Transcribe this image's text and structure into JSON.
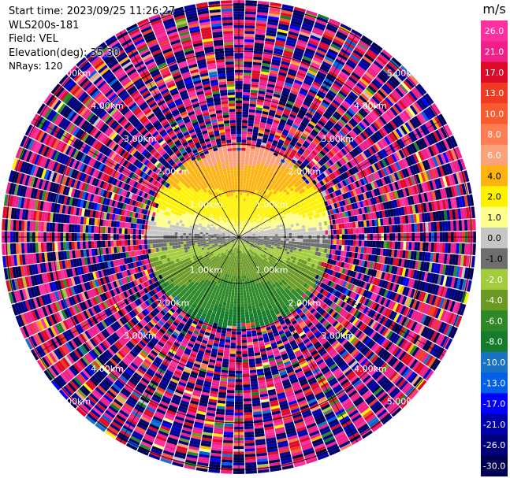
{
  "header": {
    "start_time": "Start time: 2023/09/25 11:26:27",
    "instrument": "WLS200s-181",
    "field": "Field: VEL",
    "elevation": "Elevation(deg): 35.30",
    "nrays": "NRays: 120"
  },
  "colorbar": {
    "unit": "m/s",
    "ticks": [
      "26.0",
      "21.0",
      "17.0",
      "13.0",
      "10.0",
      "8.0",
      "6.0",
      "4.0",
      "2.0",
      "1.0",
      "0.0",
      "-1.0",
      "-2.0",
      "-4.0",
      "-6.0",
      "-8.0",
      "-10.0",
      "-13.0",
      "-17.0",
      "-21.0",
      "-26.0",
      "-30.0"
    ],
    "colors": [
      "#ff2fa0",
      "#f0208a",
      "#dd0a28",
      "#f03a22",
      "#fa5a30",
      "#fc7e52",
      "#fca27a",
      "#fdb410",
      "#fef200",
      "#fefe8c",
      "#c6c6c6",
      "#6e6e6e",
      "#a2cc3c",
      "#6a9a24",
      "#2e8828",
      "#147c2a",
      "#1a72c4",
      "#0060e8",
      "#0000ff",
      "#0000aa",
      "#00007a",
      "#000050"
    ]
  },
  "chart_data": {
    "type": "ppi",
    "field": "VEL",
    "unit": "m/s",
    "nrays": 120,
    "range_rings_km": [
      1.0,
      2.0,
      3.0,
      4.0,
      5.0
    ],
    "ring_label": "km",
    "ring_labels": [
      "1.00km",
      "2.00km",
      "3.00km",
      "4.00km",
      "5.00km"
    ],
    "colorbar_range": [
      -30,
      26
    ],
    "valid_range_km": 2.0,
    "pattern": "positive (yellow/orange, toward north), negative (green/blue, toward south); beyond ~2 km noise"
  }
}
